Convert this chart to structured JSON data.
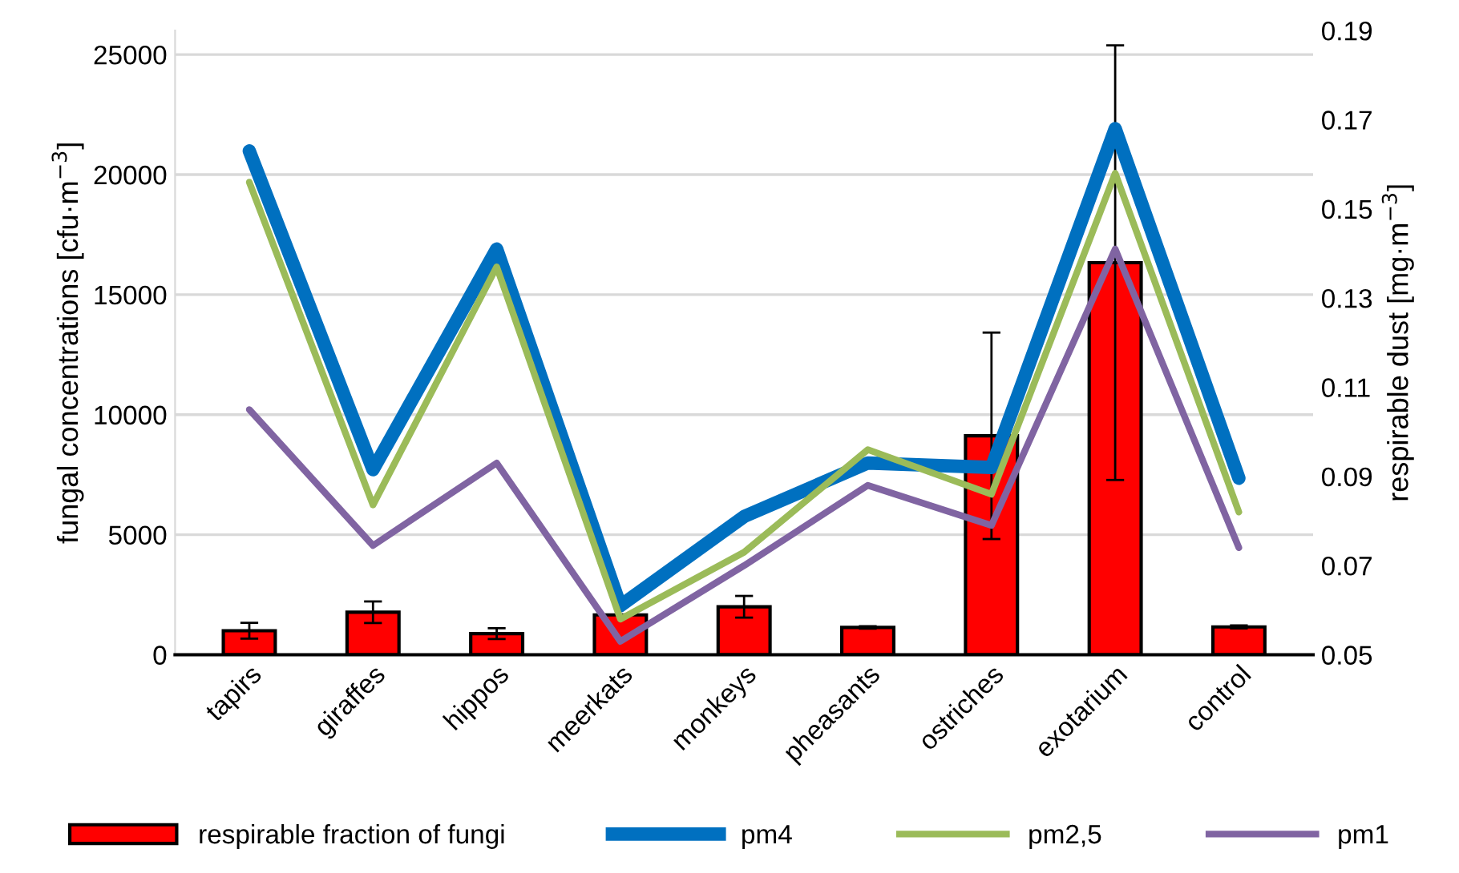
{
  "chart_data": {
    "type": "bar",
    "categories": [
      "tapirs",
      "giraffes",
      "hippos",
      "meerkats",
      "monkeys",
      "pheasants",
      "ostriches",
      "exotarium",
      "control"
    ],
    "series": [
      {
        "name": "respirable fraction of fungi",
        "color": "#ff0000",
        "values": [
          1000,
          1770,
          880,
          1660,
          2000,
          1140,
          9120,
          16330,
          1160
        ],
        "errors": [
          330,
          450,
          225,
          null,
          450,
          50,
          4300,
          9050,
          60
        ]
      },
      {
        "name": "pm4",
        "type": "line",
        "axis": "y2",
        "color": "#0070c0",
        "values": [
          0.163,
          0.0915,
          0.141,
          0.061,
          0.081,
          0.093,
          0.092,
          0.168,
          0.0896
        ]
      },
      {
        "name": "pm2,5",
        "type": "line",
        "axis": "y2",
        "color": "#9bbb59",
        "values": [
          0.156,
          0.0836,
          0.137,
          0.058,
          0.073,
          0.096,
          0.086,
          0.158,
          0.082
        ]
      },
      {
        "name": "pm1",
        "type": "line",
        "axis": "y2",
        "color": "#8064a2",
        "values": [
          0.105,
          0.0745,
          0.093,
          0.053,
          0.07,
          0.088,
          0.079,
          0.141,
          0.074
        ]
      }
    ],
    "ylabel": "fungal concentrations [cfu·m$^{−3}$]",
    "y2label": "respirable dust [mg·m$^{−3}$]",
    "ylim": [
      0,
      26000
    ],
    "yticks": [
      0,
      5000,
      10000,
      15000,
      20000,
      25000
    ],
    "y2lim": [
      0.05,
      0.19
    ],
    "y2ticks": [
      0.05,
      0.07,
      0.09,
      0.11,
      0.13,
      0.15,
      0.17,
      0.19
    ],
    "grid": "y",
    "legend": "bottom"
  }
}
